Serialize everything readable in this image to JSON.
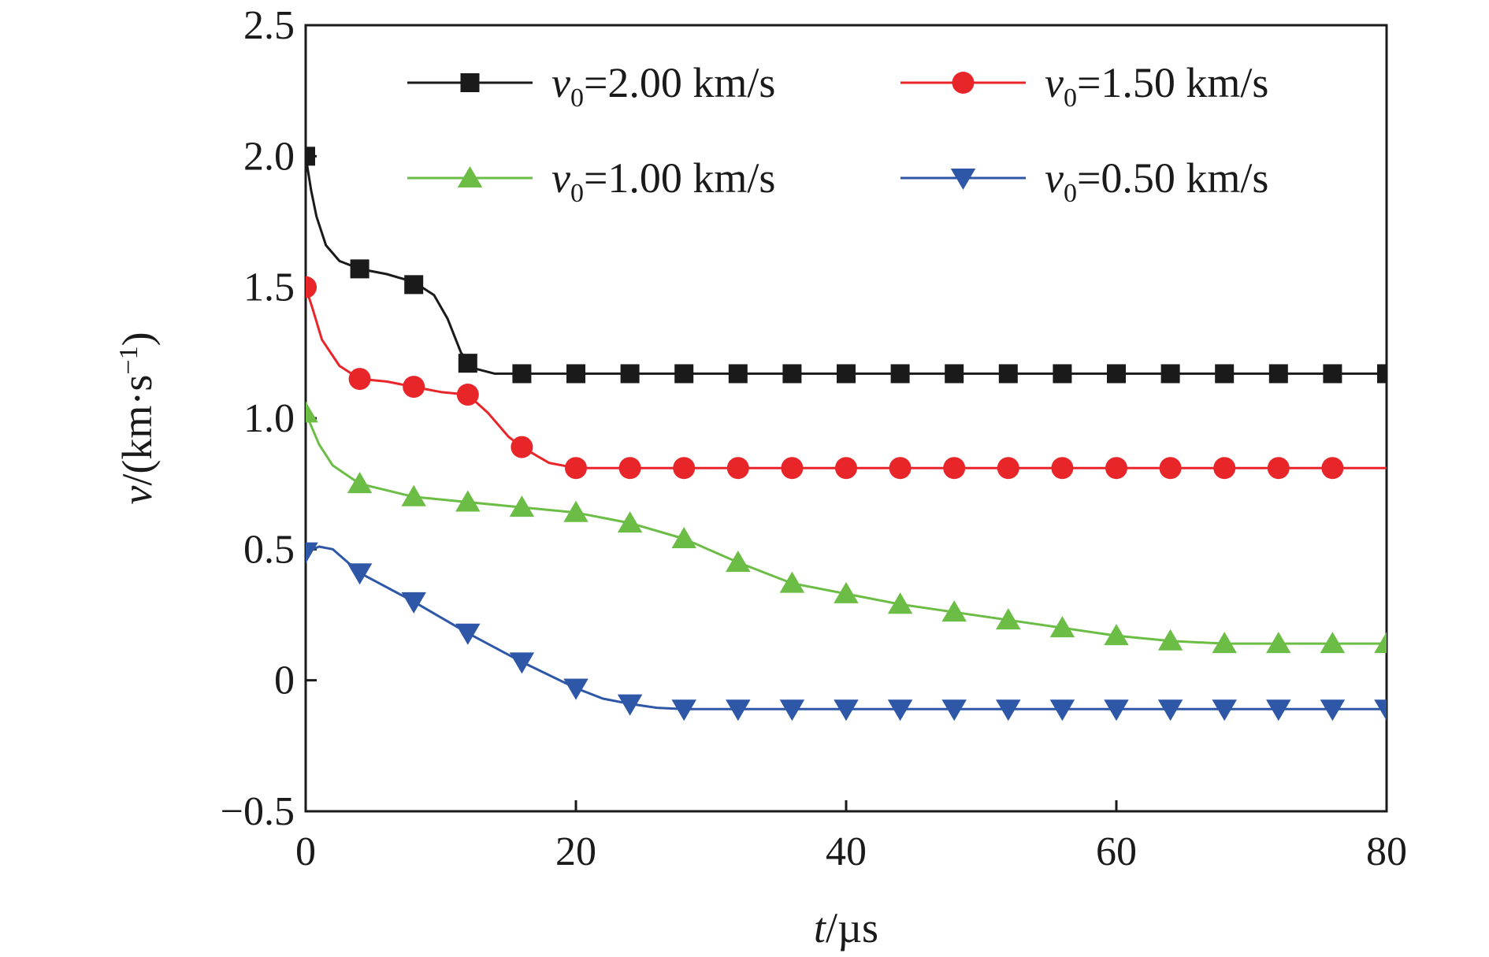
{
  "chart_data": {
    "type": "line",
    "xlabel": {
      "italic": "t",
      "rest": "/µs"
    },
    "ylabel": {
      "italic": "v",
      "rest": "/(km·s",
      "sup": "−1",
      "close": ")"
    },
    "xlim": [
      0,
      80
    ],
    "ylim": [
      -0.5,
      2.5
    ],
    "xticks": [
      0,
      20,
      40,
      60,
      80
    ],
    "xtick_labels": [
      "0",
      "20",
      "40",
      "60",
      "80"
    ],
    "yticks": [
      -0.5,
      0,
      0.5,
      1.0,
      1.5,
      2.0,
      2.5
    ],
    "ytick_labels": [
      "−0.5",
      "0",
      "0.5",
      "1.0",
      "1.5",
      "2.0",
      "2.5"
    ],
    "grid": false,
    "legend_position": "top",
    "series": [
      {
        "name": "v0=2.00 km/s",
        "legend": {
          "italic": "v",
          "sub": "0",
          "rest": "=2.00 km/s"
        },
        "color": "#1a1a1a",
        "marker": "square",
        "line": [
          [
            0,
            2.0
          ],
          [
            0.4,
            1.87
          ],
          [
            0.8,
            1.77
          ],
          [
            1.5,
            1.66
          ],
          [
            2.5,
            1.6
          ],
          [
            4,
            1.57
          ],
          [
            6,
            1.55
          ],
          [
            8,
            1.52
          ],
          [
            9.5,
            1.47
          ],
          [
            10.5,
            1.38
          ],
          [
            11.5,
            1.25
          ],
          [
            12.5,
            1.19
          ],
          [
            14,
            1.17
          ],
          [
            80,
            1.17
          ]
        ],
        "x": [
          0,
          4,
          8,
          12,
          16,
          20,
          24,
          28,
          32,
          36,
          40,
          44,
          48,
          52,
          56,
          60,
          64,
          68,
          72,
          76,
          80
        ],
        "y": [
          2.0,
          1.57,
          1.51,
          1.21,
          1.17,
          1.17,
          1.17,
          1.17,
          1.17,
          1.17,
          1.17,
          1.17,
          1.17,
          1.17,
          1.17,
          1.17,
          1.17,
          1.17,
          1.17,
          1.17,
          1.17
        ]
      },
      {
        "name": "v0=1.50 km/s",
        "legend": {
          "italic": "v",
          "sub": "0",
          "rest": "=1.50 km/s"
        },
        "color": "#e8262a",
        "marker": "circle",
        "line": [
          [
            0,
            1.5
          ],
          [
            0.5,
            1.42
          ],
          [
            1.2,
            1.3
          ],
          [
            2.5,
            1.2
          ],
          [
            4,
            1.15
          ],
          [
            6,
            1.14
          ],
          [
            8,
            1.12
          ],
          [
            10,
            1.1
          ],
          [
            12,
            1.09
          ],
          [
            13.5,
            1.02
          ],
          [
            15,
            0.93
          ],
          [
            16,
            0.89
          ],
          [
            18,
            0.83
          ],
          [
            20,
            0.81
          ],
          [
            80,
            0.81
          ]
        ],
        "x": [
          0,
          4,
          8,
          12,
          16,
          20,
          24,
          28,
          32,
          36,
          40,
          44,
          48,
          52,
          56,
          60,
          64,
          68,
          72,
          76
        ],
        "y": [
          1.5,
          1.15,
          1.12,
          1.09,
          0.89,
          0.81,
          0.81,
          0.81,
          0.81,
          0.81,
          0.81,
          0.81,
          0.81,
          0.81,
          0.81,
          0.81,
          0.81,
          0.81,
          0.81,
          0.81
        ]
      },
      {
        "name": "v0=1.00 km/s",
        "legend": {
          "italic": "v",
          "sub": "0",
          "rest": "=1.00 km/s"
        },
        "color": "#6bbd45",
        "marker": "triangle-up",
        "line": [
          [
            0,
            1.02
          ],
          [
            1,
            0.9
          ],
          [
            2,
            0.82
          ],
          [
            4,
            0.75
          ],
          [
            8,
            0.7
          ],
          [
            12,
            0.68
          ],
          [
            16,
            0.66
          ],
          [
            20,
            0.64
          ],
          [
            24,
            0.6
          ],
          [
            28,
            0.54
          ],
          [
            32,
            0.45
          ],
          [
            36,
            0.37
          ],
          [
            40,
            0.33
          ],
          [
            44,
            0.29
          ],
          [
            48,
            0.26
          ],
          [
            52,
            0.23
          ],
          [
            56,
            0.2
          ],
          [
            60,
            0.17
          ],
          [
            64,
            0.15
          ],
          [
            68,
            0.14
          ],
          [
            80,
            0.14
          ]
        ],
        "x": [
          0,
          4,
          8,
          12,
          16,
          20,
          24,
          28,
          32,
          36,
          40,
          44,
          48,
          52,
          56,
          60,
          64,
          68,
          72,
          76,
          80
        ],
        "y": [
          1.02,
          0.75,
          0.7,
          0.68,
          0.66,
          0.64,
          0.6,
          0.54,
          0.45,
          0.37,
          0.33,
          0.29,
          0.26,
          0.23,
          0.2,
          0.17,
          0.15,
          0.14,
          0.14,
          0.14,
          0.14
        ]
      },
      {
        "name": "v0=0.50 km/s",
        "legend": {
          "italic": "v",
          "sub": "0",
          "rest": "=0.50 km/s"
        },
        "color": "#2f57a8",
        "marker": "triangle-down",
        "line": [
          [
            0,
            0.49
          ],
          [
            1,
            0.51
          ],
          [
            2,
            0.5
          ],
          [
            4,
            0.41
          ],
          [
            8,
            0.3
          ],
          [
            12,
            0.18
          ],
          [
            16,
            0.07
          ],
          [
            20,
            -0.03
          ],
          [
            22,
            -0.07
          ],
          [
            24,
            -0.09
          ],
          [
            26,
            -0.105
          ],
          [
            28,
            -0.11
          ],
          [
            80,
            -0.11
          ]
        ],
        "x": [
          0,
          4,
          8,
          12,
          16,
          20,
          24,
          28,
          32,
          36,
          40,
          44,
          48,
          52,
          56,
          60,
          64,
          68,
          72,
          76,
          80
        ],
        "y": [
          0.49,
          0.41,
          0.3,
          0.18,
          0.07,
          -0.03,
          -0.09,
          -0.11,
          -0.11,
          -0.11,
          -0.11,
          -0.11,
          -0.11,
          -0.11,
          -0.11,
          -0.11,
          -0.11,
          -0.11,
          -0.11,
          -0.11,
          -0.11
        ]
      }
    ]
  }
}
